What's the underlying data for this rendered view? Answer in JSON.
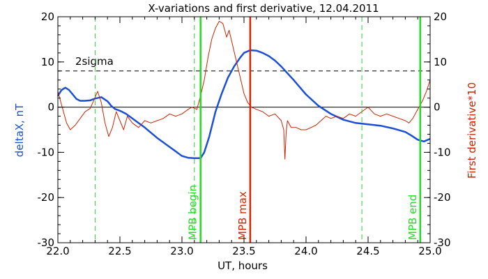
{
  "chart_data": {
    "type": "line",
    "title": "X-variations and first derivative, 12.04.2011",
    "xlabel": "UT, hours",
    "ylabel_left": "deltaX, nT",
    "ylabel_right": "First derivative*10",
    "xlim": [
      22.0,
      25.0
    ],
    "ylim_left": [
      -30,
      20
    ],
    "ylim_right": [
      -30,
      20
    ],
    "x_ticks": [
      "22.0",
      "22.5",
      "23.0",
      "23.5",
      "24.0",
      "24.5",
      "25.0"
    ],
    "y_ticks_left": [
      "-30",
      "-20",
      "-10",
      "0",
      "10",
      "20"
    ],
    "y_ticks_right": [
      "-30",
      "-20",
      "-10",
      "0",
      "10",
      "20"
    ],
    "colors": {
      "deltaX": "#1a4fd6",
      "derivative": "#cc2200",
      "mpb_markers": "#22dd22",
      "mpb_max": "#dd2200",
      "dashed_green": "#33cc33"
    },
    "threshold": {
      "label": "2sigma",
      "value": 8
    },
    "series": [
      {
        "axis": "left",
        "x": [
          22.0,
          22.03,
          22.06,
          22.09,
          22.12,
          22.15,
          22.18,
          22.22,
          22.26,
          22.3,
          22.35,
          22.4,
          22.43,
          22.46,
          22.5,
          22.55,
          22.6,
          22.7,
          22.8,
          22.9,
          23.0,
          23.05,
          23.1,
          23.15,
          23.18,
          23.22,
          23.27,
          23.32,
          23.37,
          23.42,
          23.47,
          23.5,
          23.55,
          23.6,
          23.65,
          23.7,
          23.75,
          23.8,
          23.9,
          24.0,
          24.1,
          24.2,
          24.3,
          24.4,
          24.5,
          24.6,
          24.7,
          24.8,
          24.85,
          24.9,
          24.95,
          25.0
        ],
        "y": [
          2.5,
          3.8,
          4.3,
          3.8,
          2.8,
          1.8,
          1.4,
          1.4,
          1.5,
          1.9,
          2.2,
          1.3,
          0.3,
          -0.4,
          -0.8,
          -1.5,
          -2.5,
          -4.5,
          -6.8,
          -8.8,
          -10.8,
          -11.2,
          -11.3,
          -11.3,
          -10.0,
          -6.5,
          -1.0,
          3.0,
          6.5,
          9.0,
          11.0,
          12.0,
          12.6,
          12.5,
          12.0,
          11.3,
          10.3,
          9.0,
          6.0,
          2.8,
          0.3,
          -1.5,
          -2.8,
          -3.5,
          -3.8,
          -4.1,
          -4.7,
          -5.5,
          -6.3,
          -7.2,
          -7.6,
          -7.0
        ]
      },
      {
        "axis": "right",
        "x": [
          22.0,
          22.03,
          22.07,
          22.1,
          22.14,
          22.18,
          22.22,
          22.26,
          22.29,
          22.32,
          22.35,
          22.38,
          22.41,
          22.44,
          22.47,
          22.5,
          22.53,
          22.56,
          22.6,
          22.65,
          22.7,
          22.75,
          22.8,
          22.85,
          22.9,
          22.95,
          23.0,
          23.05,
          23.08,
          23.12,
          23.15,
          23.18,
          23.21,
          23.24,
          23.27,
          23.3,
          23.33,
          23.36,
          23.38,
          23.41,
          23.44,
          23.47,
          23.5,
          23.53,
          23.56,
          23.6,
          23.65,
          23.7,
          23.75,
          23.8,
          23.82,
          23.83,
          23.84,
          23.85,
          23.88,
          23.92,
          23.96,
          24.0,
          24.04,
          24.08,
          24.12,
          24.16,
          24.2,
          24.25,
          24.3,
          24.35,
          24.4,
          24.45,
          24.5,
          24.55,
          24.6,
          24.65,
          24.7,
          24.75,
          24.8,
          24.83,
          24.86,
          24.88,
          24.91,
          24.94,
          24.97,
          25.0
        ],
        "y": [
          3.5,
          0.5,
          -3.5,
          -5.0,
          -4.0,
          -2.5,
          -1.0,
          -0.3,
          1.5,
          3.5,
          1.0,
          -3.5,
          -6.5,
          -4.5,
          -1.0,
          -3.0,
          -5.0,
          -2.0,
          -3.5,
          -4.5,
          -3.0,
          -3.5,
          -3.0,
          -2.5,
          -1.5,
          -2.0,
          -1.5,
          -0.5,
          0.0,
          -0.5,
          2.5,
          6.0,
          11.0,
          15.0,
          17.5,
          19.0,
          18.5,
          15.5,
          17.0,
          13.5,
          10.0,
          6.5,
          3.0,
          1.0,
          0.0,
          -0.5,
          -1.0,
          -2.0,
          -1.5,
          -3.0,
          -5.0,
          -11.5,
          -5.5,
          -3.0,
          -4.5,
          -4.5,
          -5.0,
          -5.0,
          -4.5,
          -4.0,
          -3.0,
          -2.0,
          -2.5,
          -2.0,
          -2.5,
          -1.5,
          -2.0,
          -1.0,
          0.0,
          -1.5,
          -2.0,
          -1.5,
          -2.0,
          -2.5,
          -3.0,
          -3.5,
          -2.5,
          -1.5,
          0.0,
          1.5,
          3.5,
          6.0
        ]
      }
    ],
    "vertical_lines": [
      {
        "x": 22.3,
        "style": "dashed",
        "color": "green",
        "label": ""
      },
      {
        "x": 23.1,
        "style": "dashed",
        "color": "green",
        "label": ""
      },
      {
        "x": 23.15,
        "style": "solid",
        "color": "green",
        "label": "MPB begin"
      },
      {
        "x": 23.55,
        "style": "solid",
        "color": "red",
        "label": "MPB max"
      },
      {
        "x": 24.45,
        "style": "dashed",
        "color": "green",
        "label": ""
      },
      {
        "x": 24.92,
        "style": "solid",
        "color": "green",
        "label": "MPB end"
      }
    ]
  }
}
